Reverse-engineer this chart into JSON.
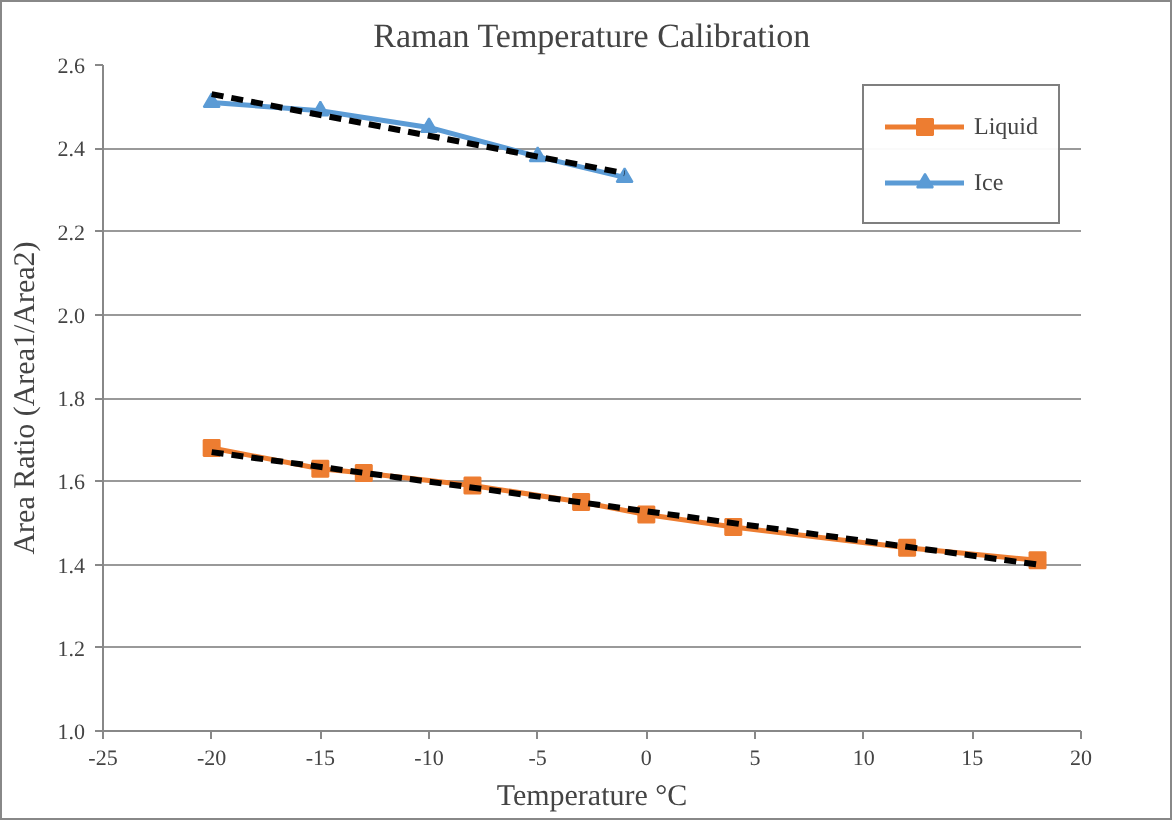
{
  "chart_data": {
    "type": "line",
    "title": "Raman Temperature Calibration",
    "xlabel": "Temperature °C",
    "ylabel": "Area Ratio (Area1/Area2)",
    "series": [
      {
        "name": "Liquid",
        "color": "#ed7d31",
        "marker": "square",
        "x": [
          -20,
          -15,
          -13,
          -8,
          -3,
          0,
          4,
          12,
          18
        ],
        "values": [
          1.68,
          1.63,
          1.62,
          1.59,
          1.55,
          1.52,
          1.49,
          1.44,
          1.41
        ]
      },
      {
        "name": "Ice",
        "color": "#5b9bd5",
        "marker": "triangle",
        "x": [
          -20,
          -15,
          -10,
          -5,
          -1
        ],
        "values": [
          2.51,
          2.49,
          2.45,
          2.38,
          2.33
        ]
      },
      {
        "color": "#000000",
        "marker": "none",
        "line_style": "dashed",
        "x": [
          -20,
          18
        ],
        "values": [
          1.67,
          1.4
        ]
      },
      {
        "color": "#000000",
        "marker": "none",
        "line_style": "dashed",
        "x": [
          -20,
          -1
        ],
        "values": [
          2.53,
          2.34
        ]
      }
    ],
    "xlim": [
      -25,
      20
    ],
    "xticks": [
      -25,
      -20,
      -15,
      -10,
      -5,
      0,
      5,
      10,
      15,
      20
    ],
    "ylim": [
      1.0,
      2.6
    ],
    "yticks": [
      {
        "value": 1.0,
        "label": "1.0"
      },
      1.2,
      1.4,
      1.6,
      1.8,
      {
        "value": 2.0,
        "label": "2.0"
      },
      2.2,
      2.4,
      2.6
    ],
    "grid": "y",
    "legend": "top right"
  }
}
